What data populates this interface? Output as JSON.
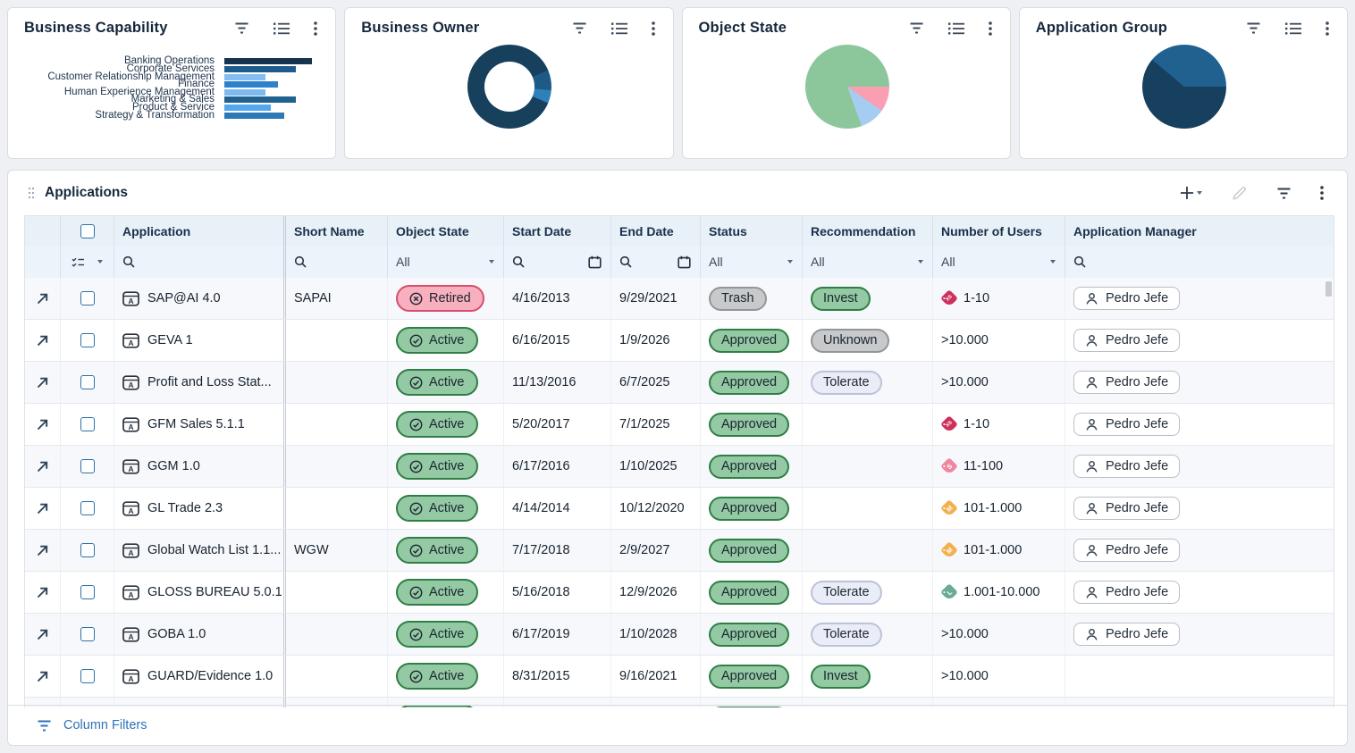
{
  "panels": [
    {
      "title": "Business Capability",
      "action_icons": [
        "filter-icon",
        "list-icon",
        "kebab-menu-icon"
      ],
      "chart_data": {
        "type": "bar",
        "orientation": "horizontal",
        "categories": [
          "Banking Operations",
          "Corporate Services",
          "Customer Relationship Management",
          "Finance",
          "Human Experience Management",
          "Marketing & Sales",
          "Product & Service",
          "Strategy & Transformation"
        ],
        "relative_values_pct": [
          100,
          82,
          47,
          61,
          47,
          82,
          53,
          68
        ],
        "colors": [
          "#16344e",
          "#1f5c8e",
          "#84bdf0",
          "#2e80c8",
          "#7cbaf0",
          "#20618f",
          "#51a7f0",
          "#2d79b5"
        ]
      }
    },
    {
      "title": "Business Owner",
      "action_icons": [
        "filter-icon",
        "list-icon",
        "kebab-menu-icon"
      ],
      "chart_data": {
        "type": "pie",
        "donut": true,
        "hole_pct": 60,
        "segments": [
          {
            "color": "#17405c",
            "deg": 67
          },
          {
            "color": "#1d5a86",
            "deg": 28
          },
          {
            "color": "#2e80ba",
            "deg": 18
          },
          {
            "color": "#17405c",
            "deg": 247
          }
        ],
        "slices_pct_by_color": {
          "#17405c": 87.2,
          "#1d5a86": 7.8,
          "#2e80ba": 5.0
        }
      }
    },
    {
      "title": "Object State",
      "action_icons": [
        "filter-icon",
        "list-icon",
        "kebab-menu-icon"
      ],
      "chart_data": {
        "type": "pie",
        "donut": false,
        "segments": [
          {
            "color": "#8cc69b",
            "deg": 90
          },
          {
            "color": "#f99fb1",
            "deg": 35
          },
          {
            "color": "#a5cdf2",
            "deg": 35
          },
          {
            "color": "#8cc69b",
            "deg": 200
          }
        ],
        "slices_pct_by_color": {
          "#8cc69b": 80.6,
          "#f99fb1": 9.7,
          "#a5cdf2": 9.7
        }
      }
    },
    {
      "title": "Application Group",
      "action_icons": [
        "filter-icon",
        "list-icon",
        "kebab-menu-icon"
      ],
      "chart_data": {
        "type": "pie",
        "donut": false,
        "segments": [
          {
            "color": "#20618f",
            "deg": 90
          },
          {
            "color": "#17405f",
            "deg": 220
          },
          {
            "color": "#20618f",
            "deg": 50
          }
        ],
        "slices_pct_by_color": {
          "#20618f": 38.9,
          "#17405f": 61.1
        }
      }
    }
  ],
  "table": {
    "title": "Applications",
    "toolbar_icons": [
      "add-icon",
      "add-dropdown-caret-icon",
      "edit-icon",
      "filter-icon",
      "kebab-menu-icon"
    ],
    "columns": [
      "Application",
      "Short Name",
      "Object State",
      "Start Date",
      "End Date",
      "Status",
      "Recommendation",
      "Number of Users",
      "Application Manager"
    ],
    "filter_all_label": "All",
    "footer_label": "Column Filters",
    "rows": [
      {
        "name": "SAP@AI 4.0",
        "short": "SAPAI",
        "state": "Retired",
        "start": "4/16/2013",
        "end": "9/29/2021",
        "status": "Trash",
        "recommendation": "Invest",
        "users": "1-10",
        "users_tag": "XS",
        "manager": "Pedro Jefe"
      },
      {
        "name": "GEVA 1",
        "short": "",
        "state": "Active",
        "start": "6/16/2015",
        "end": "1/9/2026",
        "status": "Approved",
        "recommendation": "Unknown",
        "users": ">10.000",
        "users_tag": "",
        "manager": "Pedro Jefe"
      },
      {
        "name": "Profit and Loss Stat...",
        "short": "",
        "state": "Active",
        "start": "11/13/2016",
        "end": "6/7/2025",
        "status": "Approved",
        "recommendation": "Tolerate",
        "users": ">10.000",
        "users_tag": "",
        "manager": "Pedro Jefe"
      },
      {
        "name": "GFM Sales 5.1.1",
        "short": "",
        "state": "Active",
        "start": "5/20/2017",
        "end": "7/1/2025",
        "status": "Approved",
        "recommendation": "",
        "users": "1-10",
        "users_tag": "XS",
        "manager": "Pedro Jefe"
      },
      {
        "name": "GGM 1.0",
        "short": "",
        "state": "Active",
        "start": "6/17/2016",
        "end": "1/10/2025",
        "status": "Approved",
        "recommendation": "",
        "users": "11-100",
        "users_tag": "S",
        "manager": "Pedro Jefe"
      },
      {
        "name": "GL Trade 2.3",
        "short": "",
        "state": "Active",
        "start": "4/14/2014",
        "end": "10/12/2020",
        "status": "Approved",
        "recommendation": "",
        "users": "101-1.000",
        "users_tag": "M",
        "manager": "Pedro Jefe"
      },
      {
        "name": "Global Watch List 1.1...",
        "short": "WGW",
        "state": "Active",
        "start": "7/17/2018",
        "end": "2/9/2027",
        "status": "Approved",
        "recommendation": "",
        "users": "101-1.000",
        "users_tag": "M",
        "manager": "Pedro Jefe"
      },
      {
        "name": "GLOSS BUREAU 5.0.1",
        "short": "",
        "state": "Active",
        "start": "5/16/2018",
        "end": "12/9/2026",
        "status": "Approved",
        "recommendation": "Tolerate",
        "users": "1.001-10.000",
        "users_tag": "L",
        "manager": "Pedro Jefe"
      },
      {
        "name": "GOBA 1.0",
        "short": "",
        "state": "Active",
        "start": "6/17/2019",
        "end": "1/10/2028",
        "status": "Approved",
        "recommendation": "Tolerate",
        "users": ">10.000",
        "users_tag": "",
        "manager": "Pedro Jefe"
      },
      {
        "name": "GUARD/Evidence 1.0",
        "short": "",
        "state": "Active",
        "start": "8/31/2015",
        "end": "9/16/2021",
        "status": "Approved",
        "recommendation": "Invest",
        "users": ">10.000",
        "users_tag": "",
        "manager": ""
      },
      {
        "name": "",
        "short": "",
        "state": "Active",
        "start": "",
        "end": "",
        "status": "Approved",
        "recommendation": "",
        "users": "",
        "users_tag": "",
        "manager": ""
      }
    ]
  }
}
